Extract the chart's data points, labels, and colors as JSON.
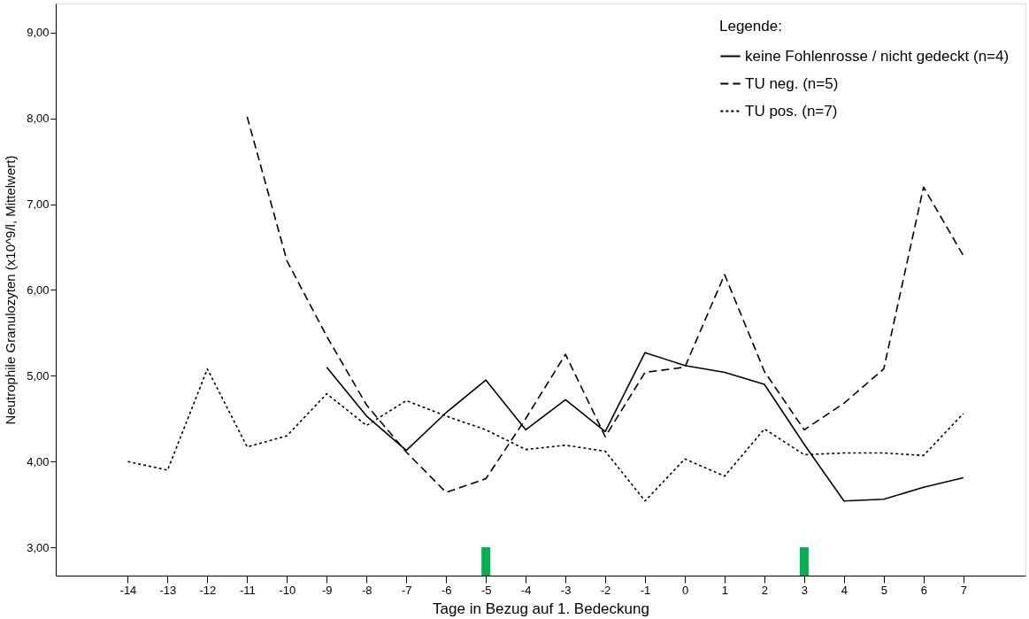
{
  "chart_data": {
    "type": "line",
    "xlabel": "Tage in Bezug auf 1. Bedeckung",
    "ylabel": "Neutrophile Granulozyten (x10^9/l, Mittelwert)",
    "legend_title": "Legende:",
    "x": [
      -14,
      -13,
      -12,
      -11,
      -10,
      -9,
      -8,
      -7,
      -6,
      -5,
      -4,
      -3,
      -2,
      -1,
      0,
      1,
      2,
      3,
      4,
      5,
      6,
      7
    ],
    "xlim": [
      -15.7,
      8.45
    ],
    "xticks": [
      -14,
      -13,
      -12,
      -11,
      -10,
      -9,
      -8,
      -7,
      -6,
      -5,
      -4,
      -3,
      -2,
      -1,
      0,
      1,
      2,
      3,
      4,
      5,
      6,
      7
    ],
    "ylim": [
      2.67,
      9.34
    ],
    "yticks": [
      {
        "value": 3,
        "label": "3,00"
      },
      {
        "value": 4,
        "label": "4,00"
      },
      {
        "value": 5,
        "label": "5,00"
      },
      {
        "value": 6,
        "label": "6,00"
      },
      {
        "value": 7,
        "label": "7,00"
      },
      {
        "value": 8,
        "label": "8,00"
      },
      {
        "value": 9,
        "label": "9,00"
      }
    ],
    "grid": false,
    "legend": "top right",
    "series": [
      {
        "name": "keine Fohlenrosse / nicht gedeckt (n=4)",
        "color": "#000000",
        "line_style": "solid",
        "values": [
          null,
          null,
          null,
          null,
          null,
          5.1,
          4.53,
          4.13,
          4.57,
          4.95,
          4.37,
          4.72,
          4.35,
          5.27,
          5.12,
          5.04,
          4.9,
          4.2,
          3.54,
          3.56,
          3.7,
          3.81
        ]
      },
      {
        "name": "TU neg. (n=5)",
        "color": "#000000",
        "line_style": "dashed",
        "values": [
          null,
          null,
          null,
          8.02,
          6.34,
          5.46,
          4.66,
          4.11,
          3.64,
          3.8,
          4.5,
          5.25,
          4.29,
          5.04,
          5.1,
          6.18,
          5.05,
          4.37,
          4.68,
          5.08,
          7.2,
          6.4
        ]
      },
      {
        "name": "TU pos. (n=7)",
        "color": "#000000",
        "line_style": "dotted",
        "values": [
          4.0,
          3.9,
          5.08,
          4.17,
          4.3,
          4.79,
          4.42,
          4.71,
          4.53,
          4.37,
          4.14,
          4.19,
          4.12,
          3.54,
          4.03,
          3.83,
          4.38,
          4.08,
          4.1,
          4.1,
          4.07,
          4.56
        ]
      },
      {
        "type": "bar",
        "color": "#00b050",
        "x": [
          -5,
          3
        ],
        "base": [
          2.67,
          2.67
        ],
        "values": [
          0.33,
          0.33
        ]
      }
    ]
  }
}
